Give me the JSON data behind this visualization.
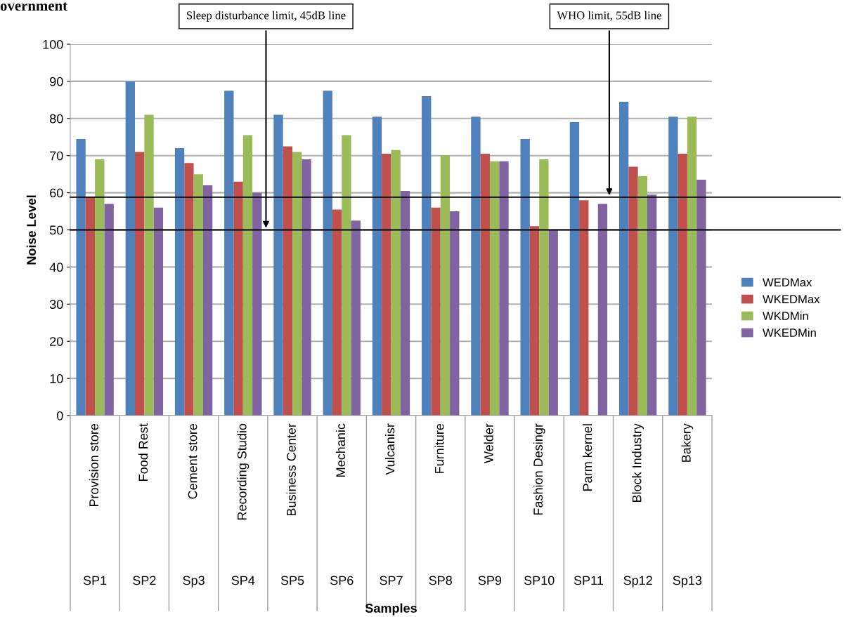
{
  "chart_data": {
    "type": "bar",
    "ylabel": "Noise Level",
    "categories": [
      "SP1\nProvision store",
      "SP2\nFood Rest",
      "Sp3\nCement store",
      "SP4\nRecording Studio",
      "SP5\nBusiness Center",
      "SP6\nMechanic",
      "SP7\nVulcanisr",
      "SP8\nFurniture",
      "SP9\nWelder",
      "SP10\nFashion Desingr",
      "SP11\nParm kernel",
      "Sp12\nBlock Industry",
      "Sp13\nBakery"
    ],
    "series": [
      {
        "name": "WEDMax",
        "color": "#4f81bd",
        "values": [
          74.5,
          90,
          72,
          87.5,
          81,
          87.5,
          80.5,
          86,
          80.5,
          74.5,
          79,
          84.5,
          80.5
        ]
      },
      {
        "name": "WKEDMax",
        "color": "#c0504d",
        "values": [
          59,
          71,
          68,
          63,
          72.5,
          55.5,
          70.5,
          56,
          70.5,
          51,
          58,
          67,
          70.5
        ]
      },
      {
        "name": "WKDMin",
        "color": "#9bbb59",
        "values": [
          69,
          81,
          65,
          75.5,
          71,
          75.5,
          71.5,
          70,
          68.5,
          69,
          0,
          64.5,
          80.5
        ]
      },
      {
        "name": "WKEDMin",
        "color": "#8064a2",
        "values": [
          57,
          56,
          62,
          60,
          69,
          52.5,
          60.5,
          55,
          68.5,
          50,
          57,
          59.5,
          63.5
        ]
      }
    ],
    "ylim": [
      0,
      100
    ],
    "yticks": [
      0,
      10,
      20,
      30,
      40,
      50,
      60,
      70,
      80,
      90,
      100
    ],
    "grid": "y",
    "legend": "right",
    "ref_lines": [
      {
        "axis": "y",
        "value": 50,
        "label": "Sleep disturbance limit, 45dB line",
        "color": "#000000"
      },
      {
        "axis": "y",
        "value": 58.8,
        "label": "WHO limit, 55dB line",
        "color": "#000000"
      }
    ],
    "annotations": [
      "overnment",
      "Samples"
    ]
  }
}
